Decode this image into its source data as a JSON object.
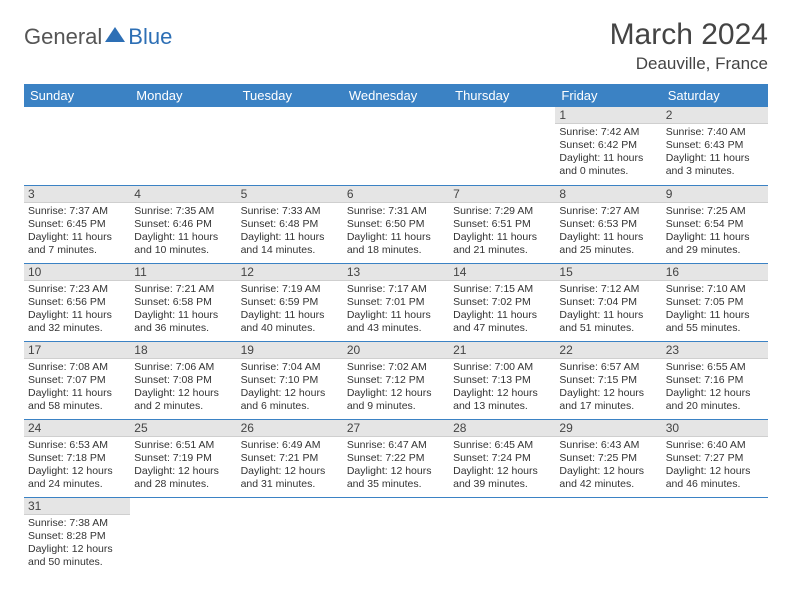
{
  "logo": {
    "text_general": "General",
    "text_blue": "Blue"
  },
  "header": {
    "title": "March 2024",
    "location": "Deauville, France"
  },
  "colors": {
    "header_bg": "#3b82c4",
    "header_text": "#ffffff",
    "daynum_bg": "#e5e5e5",
    "row_divider": "#3b82c4",
    "body_text": "#333333",
    "logo_blue": "#2d6fb5"
  },
  "columns": [
    "Sunday",
    "Monday",
    "Tuesday",
    "Wednesday",
    "Thursday",
    "Friday",
    "Saturday"
  ],
  "weeks": [
    [
      null,
      null,
      null,
      null,
      null,
      {
        "n": "1",
        "sr": "7:42 AM",
        "ss": "6:42 PM",
        "dl": "11 hours and 0 minutes."
      },
      {
        "n": "2",
        "sr": "7:40 AM",
        "ss": "6:43 PM",
        "dl": "11 hours and 3 minutes."
      }
    ],
    [
      {
        "n": "3",
        "sr": "7:37 AM",
        "ss": "6:45 PM",
        "dl": "11 hours and 7 minutes."
      },
      {
        "n": "4",
        "sr": "7:35 AM",
        "ss": "6:46 PM",
        "dl": "11 hours and 10 minutes."
      },
      {
        "n": "5",
        "sr": "7:33 AM",
        "ss": "6:48 PM",
        "dl": "11 hours and 14 minutes."
      },
      {
        "n": "6",
        "sr": "7:31 AM",
        "ss": "6:50 PM",
        "dl": "11 hours and 18 minutes."
      },
      {
        "n": "7",
        "sr": "7:29 AM",
        "ss": "6:51 PM",
        "dl": "11 hours and 21 minutes."
      },
      {
        "n": "8",
        "sr": "7:27 AM",
        "ss": "6:53 PM",
        "dl": "11 hours and 25 minutes."
      },
      {
        "n": "9",
        "sr": "7:25 AM",
        "ss": "6:54 PM",
        "dl": "11 hours and 29 minutes."
      }
    ],
    [
      {
        "n": "10",
        "sr": "7:23 AM",
        "ss": "6:56 PM",
        "dl": "11 hours and 32 minutes."
      },
      {
        "n": "11",
        "sr": "7:21 AM",
        "ss": "6:58 PM",
        "dl": "11 hours and 36 minutes."
      },
      {
        "n": "12",
        "sr": "7:19 AM",
        "ss": "6:59 PM",
        "dl": "11 hours and 40 minutes."
      },
      {
        "n": "13",
        "sr": "7:17 AM",
        "ss": "7:01 PM",
        "dl": "11 hours and 43 minutes."
      },
      {
        "n": "14",
        "sr": "7:15 AM",
        "ss": "7:02 PM",
        "dl": "11 hours and 47 minutes."
      },
      {
        "n": "15",
        "sr": "7:12 AM",
        "ss": "7:04 PM",
        "dl": "11 hours and 51 minutes."
      },
      {
        "n": "16",
        "sr": "7:10 AM",
        "ss": "7:05 PM",
        "dl": "11 hours and 55 minutes."
      }
    ],
    [
      {
        "n": "17",
        "sr": "7:08 AM",
        "ss": "7:07 PM",
        "dl": "11 hours and 58 minutes."
      },
      {
        "n": "18",
        "sr": "7:06 AM",
        "ss": "7:08 PM",
        "dl": "12 hours and 2 minutes."
      },
      {
        "n": "19",
        "sr": "7:04 AM",
        "ss": "7:10 PM",
        "dl": "12 hours and 6 minutes."
      },
      {
        "n": "20",
        "sr": "7:02 AM",
        "ss": "7:12 PM",
        "dl": "12 hours and 9 minutes."
      },
      {
        "n": "21",
        "sr": "7:00 AM",
        "ss": "7:13 PM",
        "dl": "12 hours and 13 minutes."
      },
      {
        "n": "22",
        "sr": "6:57 AM",
        "ss": "7:15 PM",
        "dl": "12 hours and 17 minutes."
      },
      {
        "n": "23",
        "sr": "6:55 AM",
        "ss": "7:16 PM",
        "dl": "12 hours and 20 minutes."
      }
    ],
    [
      {
        "n": "24",
        "sr": "6:53 AM",
        "ss": "7:18 PM",
        "dl": "12 hours and 24 minutes."
      },
      {
        "n": "25",
        "sr": "6:51 AM",
        "ss": "7:19 PM",
        "dl": "12 hours and 28 minutes."
      },
      {
        "n": "26",
        "sr": "6:49 AM",
        "ss": "7:21 PM",
        "dl": "12 hours and 31 minutes."
      },
      {
        "n": "27",
        "sr": "6:47 AM",
        "ss": "7:22 PM",
        "dl": "12 hours and 35 minutes."
      },
      {
        "n": "28",
        "sr": "6:45 AM",
        "ss": "7:24 PM",
        "dl": "12 hours and 39 minutes."
      },
      {
        "n": "29",
        "sr": "6:43 AM",
        "ss": "7:25 PM",
        "dl": "12 hours and 42 minutes."
      },
      {
        "n": "30",
        "sr": "6:40 AM",
        "ss": "7:27 PM",
        "dl": "12 hours and 46 minutes."
      }
    ],
    [
      {
        "n": "31",
        "sr": "7:38 AM",
        "ss": "8:28 PM",
        "dl": "12 hours and 50 minutes."
      },
      null,
      null,
      null,
      null,
      null,
      null
    ]
  ],
  "labels": {
    "sunrise": "Sunrise:",
    "sunset": "Sunset:",
    "daylight": "Daylight:"
  }
}
